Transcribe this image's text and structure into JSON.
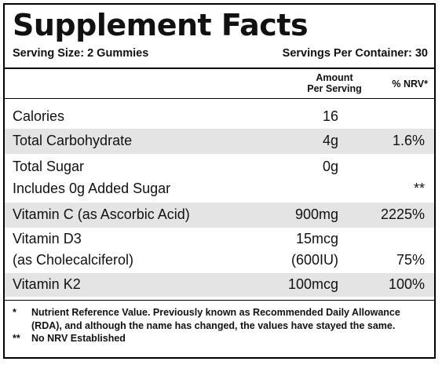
{
  "title": "Supplement Facts",
  "serving_size": "Serving Size: 2 Gummies",
  "servings_per_container": "Servings Per Container: 30",
  "headers": {
    "amount_line1": "Amount",
    "amount_line2": "Per Serving",
    "nrv": "% NRV*"
  },
  "rows": [
    {
      "name": "Calories",
      "amount": "16",
      "nrv": ""
    },
    {
      "name": "Total Carbohydrate",
      "amount": "4g",
      "nrv": "1.6%"
    },
    {
      "name": "Total Sugar",
      "amount": "0g",
      "nrv": ""
    },
    {
      "name": "Includes 0g Added Sugar",
      "amount": "",
      "nrv": "**"
    },
    {
      "name": "Vitamin C (as Ascorbic Acid)",
      "amount": "900mg",
      "nrv": "2225%"
    },
    {
      "name": "Vitamin D3",
      "amount": "15mcg",
      "nrv": ""
    },
    {
      "name": "(as Cholecalciferol)",
      "amount": "(600IU)",
      "nrv": "75%"
    },
    {
      "name": "Vitamin K2",
      "amount": "100mcg",
      "nrv": "100%"
    }
  ],
  "footnotes": [
    {
      "mark": "*",
      "text": "Nutrient Reference Value. Previously known as Recommended Daily Allowance (RDA), and although the name has changed, the values have stayed the same."
    },
    {
      "mark": "**",
      "text": "No NRV Established"
    }
  ]
}
